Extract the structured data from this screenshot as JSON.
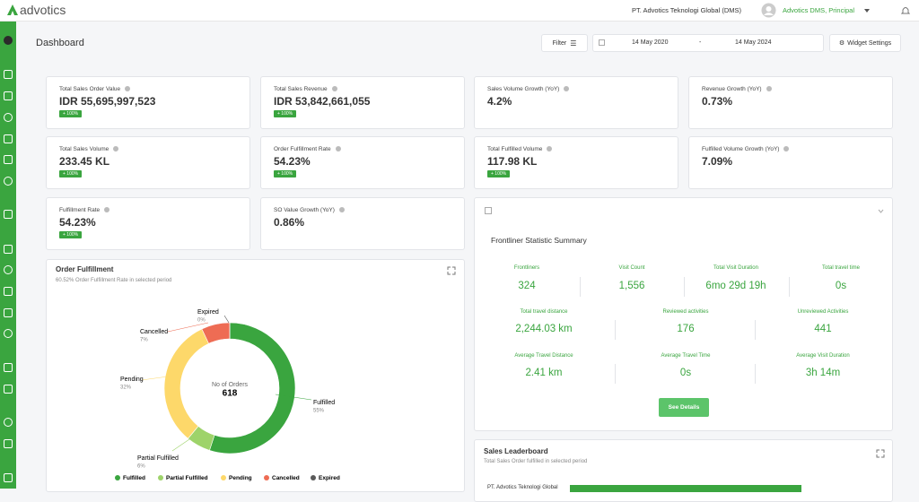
{
  "header": {
    "logo": "advotics",
    "company": "PT. Advotics Teknologi Global (DMS)",
    "user": "Advotics DMS, Principal"
  },
  "toolbar": {
    "title": "Dashboard",
    "filter": "Filter",
    "date_from": "14 May 2020",
    "date_sep": "-",
    "date_to": "14 May 2024",
    "widget_settings": "Widget Settings"
  },
  "metrics": [
    {
      "label": "Total Sales Order Value",
      "value": "IDR 55,695,997,523",
      "badge": "+ 100%"
    },
    {
      "label": "Total Sales Revenue",
      "value": "IDR 53,842,661,055",
      "badge": "+ 100%"
    },
    {
      "label": "Sales Volume Growth (YoY)",
      "value": "4.2%"
    },
    {
      "label": "Revenue Growth (YoY)",
      "value": "0.73%"
    },
    {
      "label": "Total Sales Volume",
      "value": "233.45 KL",
      "badge": "+ 100%"
    },
    {
      "label": "Order Fulfillment Rate",
      "value": "54.23%",
      "badge": "+ 100%"
    },
    {
      "label": "Total Fulfilled Volume",
      "value": "117.98 KL",
      "badge": "+ 100%"
    },
    {
      "label": "Fulfilled Volume Growth (YoY)",
      "value": "7.09%"
    },
    {
      "label": "Fulfillment Rate",
      "value": "54.23%",
      "badge": "+ 100%"
    },
    {
      "label": "SO Value Growth (YoY)",
      "value": "0.86%"
    }
  ],
  "frontliner": {
    "title": "Frontliner Statistic Summary",
    "button": "See Details",
    "rows": [
      [
        {
          "label": "Frontliners",
          "value": "324"
        },
        {
          "label": "Visit Count",
          "value": "1,556"
        },
        {
          "label": "Total Visit Duration",
          "value": "6mo 29d 19h"
        },
        {
          "label": "Total travel time",
          "value": "0s"
        }
      ],
      [
        {
          "label": "Total travel distance",
          "value": "2,244.03 km"
        },
        {
          "label": "Reviewed activities",
          "value": "176"
        },
        {
          "label": "Unreviewed Activities",
          "value": "441"
        }
      ],
      [
        {
          "label": "Average Travel Distance",
          "value": "2.41 km"
        },
        {
          "label": "Average Travel Time",
          "value": "0s"
        },
        {
          "label": "Average Visit Duration",
          "value": "3h 14m"
        }
      ]
    ]
  },
  "leaderboard": {
    "title": "Sales Leaderboard",
    "subtitle": "Total Sales Order fulfilled in selected period",
    "first_row": "PT. Advotics Teknologi Global"
  },
  "chart_data": {
    "type": "donut",
    "title": "Order Fulfillment",
    "subtitle": "60.52% Order Fulfillment Rate in selected period",
    "center_label": "No of Orders",
    "center_value": 618,
    "categories": [
      "Fulfilled",
      "Partial Fulfilled",
      "Pending",
      "Cancelled",
      "Expired"
    ],
    "values": [
      55,
      6,
      32,
      7,
      0
    ],
    "value_labels": [
      "55%",
      "6%",
      "32%",
      "7%",
      "0%"
    ],
    "colors": [
      "#3aa53f",
      "#9ed36a",
      "#fdd86a",
      "#ee6c54",
      "#5a5a5a"
    ]
  }
}
